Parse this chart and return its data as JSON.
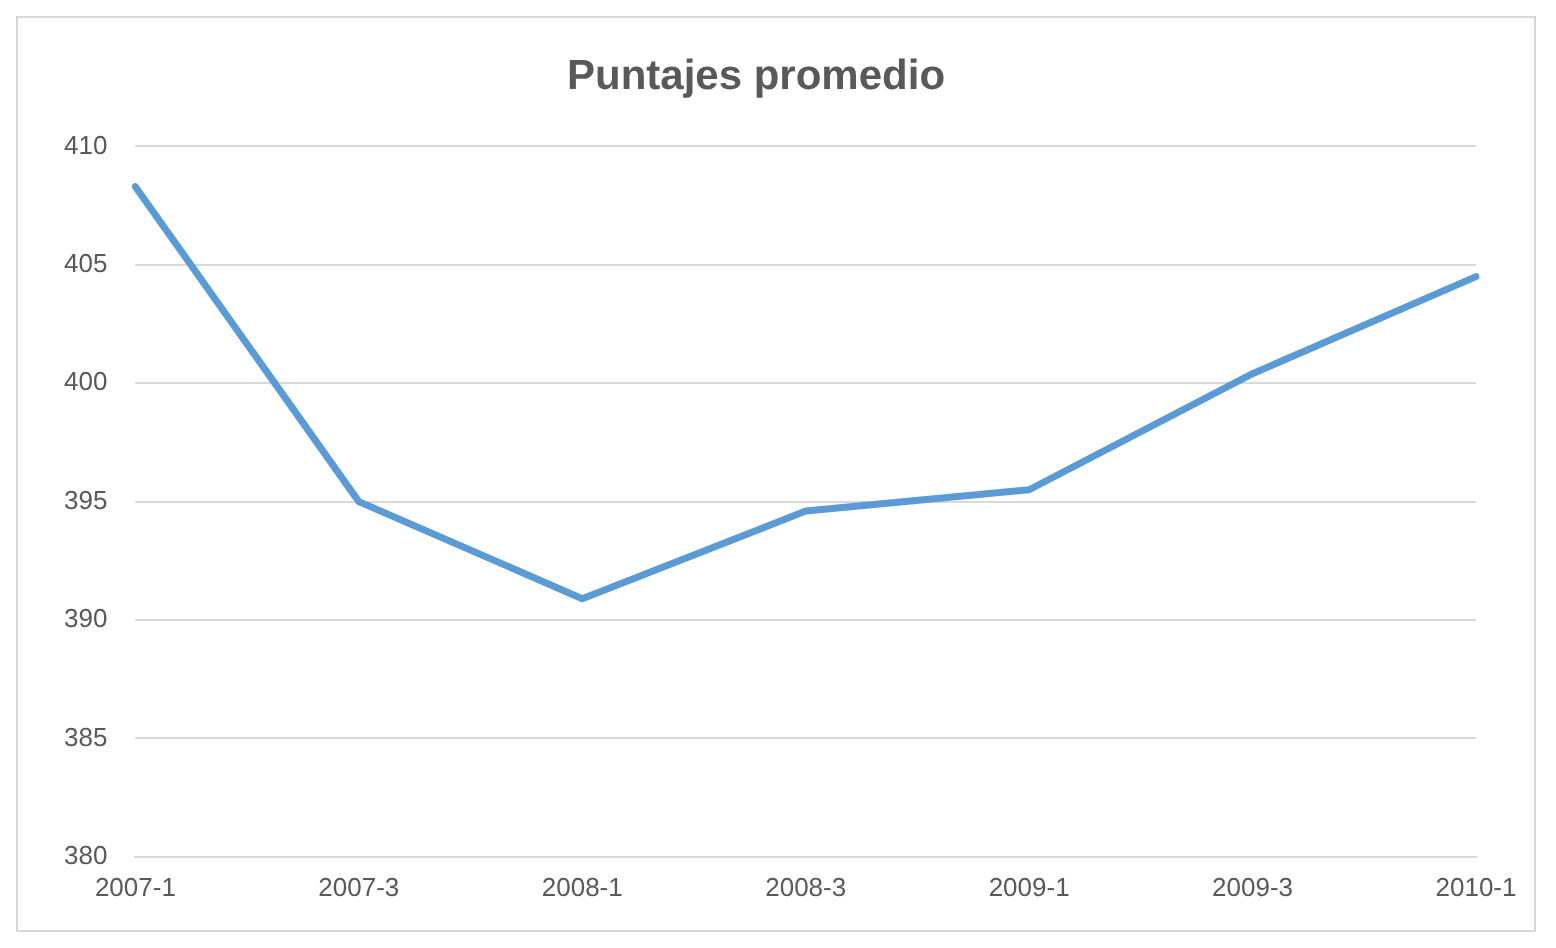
{
  "chart_data": {
    "type": "line",
    "title": "Puntajes promedio",
    "categories": [
      "2007-1",
      "2007-3",
      "2008-1",
      "2008-3",
      "2009-1",
      "2009-3",
      "2010-1"
    ],
    "series": [
      {
        "color": "#5b9bd5",
        "values": [
          408.3,
          395.0,
          390.9,
          394.6,
          395.5,
          400.4,
          404.5
        ]
      }
    ],
    "ylim": [
      380,
      410
    ],
    "yticks": [
      380,
      385,
      390,
      395,
      400,
      405,
      410
    ],
    "grid": "y",
    "legend": false,
    "marker": "none",
    "line_style": "solid"
  }
}
